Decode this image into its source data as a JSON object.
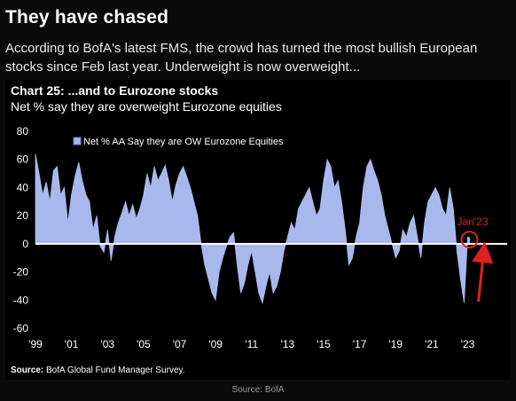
{
  "header": {
    "title": "They have chased",
    "intro": "According to BofA's latest FMS, the crowd has turned the most bullish European stocks since Feb last year. Underweight is now overweight..."
  },
  "chart_data": {
    "type": "area",
    "title": "Chart 25: ...and to Eurozone stocks",
    "subtitle": "Net % say they are overweight Eurozone equities",
    "legend": "Net % AA Say they are OW Eurozone Equities",
    "legend_position": "top-left",
    "x_ticks": [
      "'99",
      "'01",
      "'03",
      "'05",
      "'07",
      "'09",
      "'11",
      "'13",
      "'15",
      "'17",
      "'19",
      "'21",
      "'23"
    ],
    "y_ticks": [
      80,
      60,
      40,
      20,
      0,
      -20,
      -40,
      -60
    ],
    "ylim": [
      -60,
      80
    ],
    "xlim": [
      1999.0,
      2024.5
    ],
    "grid": false,
    "series": [
      {
        "color": "#a9b8ec",
        "points": [
          [
            1999.0,
            64
          ],
          [
            1999.2,
            50
          ],
          [
            1999.4,
            35
          ],
          [
            1999.6,
            44
          ],
          [
            1999.8,
            30
          ],
          [
            2000.0,
            52
          ],
          [
            2000.2,
            55
          ],
          [
            2000.4,
            35
          ],
          [
            2000.6,
            40
          ],
          [
            2000.8,
            15
          ],
          [
            2001.0,
            35
          ],
          [
            2001.2,
            48
          ],
          [
            2001.4,
            58
          ],
          [
            2001.6,
            45
          ],
          [
            2001.8,
            35
          ],
          [
            2002.0,
            30
          ],
          [
            2002.2,
            10
          ],
          [
            2002.4,
            20
          ],
          [
            2002.6,
            -2
          ],
          [
            2002.8,
            -6
          ],
          [
            2003.0,
            10
          ],
          [
            2003.2,
            -12
          ],
          [
            2003.4,
            5
          ],
          [
            2003.6,
            15
          ],
          [
            2003.8,
            22
          ],
          [
            2004.0,
            30
          ],
          [
            2004.2,
            20
          ],
          [
            2004.4,
            28
          ],
          [
            2004.6,
            18
          ],
          [
            2004.8,
            25
          ],
          [
            2005.0,
            35
          ],
          [
            2005.2,
            50
          ],
          [
            2005.4,
            40
          ],
          [
            2005.6,
            55
          ],
          [
            2005.8,
            45
          ],
          [
            2006.0,
            50
          ],
          [
            2006.2,
            56
          ],
          [
            2006.4,
            45
          ],
          [
            2006.6,
            30
          ],
          [
            2006.8,
            42
          ],
          [
            2007.0,
            50
          ],
          [
            2007.2,
            55
          ],
          [
            2007.4,
            48
          ],
          [
            2007.6,
            40
          ],
          [
            2007.8,
            30
          ],
          [
            2008.0,
            20
          ],
          [
            2008.2,
            0
          ],
          [
            2008.4,
            -15
          ],
          [
            2008.6,
            -25
          ],
          [
            2008.8,
            -35
          ],
          [
            2009.0,
            -40
          ],
          [
            2009.2,
            -20
          ],
          [
            2009.4,
            -10
          ],
          [
            2009.6,
            -2
          ],
          [
            2009.8,
            5
          ],
          [
            2010.0,
            8
          ],
          [
            2010.2,
            -15
          ],
          [
            2010.4,
            -35
          ],
          [
            2010.6,
            -28
          ],
          [
            2010.8,
            -15
          ],
          [
            2011.0,
            -5
          ],
          [
            2011.2,
            -20
          ],
          [
            2011.4,
            -35
          ],
          [
            2011.6,
            -42
          ],
          [
            2011.8,
            -30
          ],
          [
            2012.0,
            -20
          ],
          [
            2012.2,
            -35
          ],
          [
            2012.4,
            -30
          ],
          [
            2012.6,
            -20
          ],
          [
            2012.8,
            -5
          ],
          [
            2013.0,
            5
          ],
          [
            2013.2,
            15
          ],
          [
            2013.4,
            10
          ],
          [
            2013.6,
            25
          ],
          [
            2013.8,
            30
          ],
          [
            2014.0,
            35
          ],
          [
            2014.2,
            40
          ],
          [
            2014.4,
            30
          ],
          [
            2014.6,
            20
          ],
          [
            2014.8,
            25
          ],
          [
            2015.0,
            45
          ],
          [
            2015.2,
            60
          ],
          [
            2015.4,
            55
          ],
          [
            2015.6,
            40
          ],
          [
            2015.8,
            45
          ],
          [
            2016.0,
            30
          ],
          [
            2016.2,
            10
          ],
          [
            2016.4,
            -15
          ],
          [
            2016.6,
            -10
          ],
          [
            2016.8,
            5
          ],
          [
            2017.0,
            15
          ],
          [
            2017.2,
            40
          ],
          [
            2017.4,
            55
          ],
          [
            2017.6,
            60
          ],
          [
            2017.8,
            52
          ],
          [
            2018.0,
            45
          ],
          [
            2018.2,
            35
          ],
          [
            2018.4,
            20
          ],
          [
            2018.6,
            10
          ],
          [
            2018.8,
            0
          ],
          [
            2019.0,
            -10
          ],
          [
            2019.2,
            -5
          ],
          [
            2019.4,
            10
          ],
          [
            2019.6,
            5
          ],
          [
            2019.8,
            15
          ],
          [
            2020.0,
            20
          ],
          [
            2020.2,
            5
          ],
          [
            2020.4,
            -10
          ],
          [
            2020.6,
            15
          ],
          [
            2020.8,
            30
          ],
          [
            2021.0,
            35
          ],
          [
            2021.2,
            40
          ],
          [
            2021.4,
            35
          ],
          [
            2021.6,
            25
          ],
          [
            2021.8,
            20
          ],
          [
            2022.0,
            40
          ],
          [
            2022.2,
            25
          ],
          [
            2022.4,
            -5
          ],
          [
            2022.6,
            -25
          ],
          [
            2022.8,
            -42
          ],
          [
            2023.0,
            5
          ],
          [
            2023.1,
            4
          ]
        ]
      }
    ],
    "annotation": {
      "label": "Jan'23",
      "x": 2023.1,
      "y": 3,
      "color": "#e02020"
    },
    "source": "BofA Global Fund Manager Survey.",
    "source_label": "Source:"
  },
  "footer": {
    "source": "Source: BofA"
  }
}
